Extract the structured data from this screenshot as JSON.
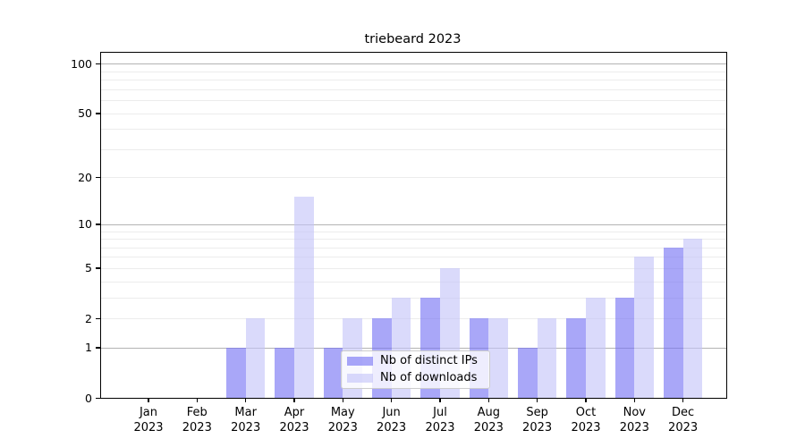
{
  "title": "triebeard 2023",
  "chart_data": {
    "type": "bar",
    "title": "triebeard 2023",
    "categories": [
      "Jan 2023",
      "Feb 2023",
      "Mar 2023",
      "Apr 2023",
      "May 2023",
      "Jun 2023",
      "Jul 2023",
      "Aug 2023",
      "Sep 2023",
      "Oct 2023",
      "Nov 2023",
      "Dec 2023"
    ],
    "series": [
      {
        "name": "Nb of distinct IPs",
        "values": [
          0,
          0,
          1,
          1,
          1,
          2,
          3,
          2,
          1,
          2,
          3,
          7
        ],
        "color": "rgba(116,113,244,0.62)"
      },
      {
        "name": "Nb of downloads",
        "values": [
          0,
          0,
          2,
          15,
          2,
          3,
          5,
          2,
          2,
          3,
          6,
          8
        ],
        "color": "rgba(196,196,248,0.62)"
      }
    ],
    "xlabel": "",
    "ylabel": "",
    "yscale": "log1p",
    "ylim": [
      0,
      118
    ],
    "yticks_labeled": [
      0,
      1,
      2,
      5,
      10,
      20,
      50,
      100
    ],
    "yticks_minor": [
      3,
      4,
      6,
      7,
      8,
      9,
      30,
      40,
      60,
      70,
      80,
      90
    ],
    "decade_gridlines": [
      1,
      10,
      100
    ],
    "grid": true,
    "legend_position": "lower center",
    "legend_items": [
      "Nb of distinct IPs",
      "Nb of downloads"
    ]
  }
}
